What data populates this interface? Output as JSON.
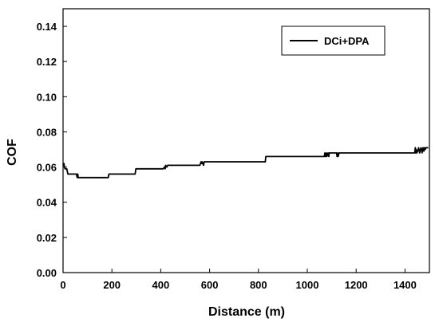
{
  "chart_data": {
    "type": "line",
    "xlabel": "Distance (m)",
    "ylabel": "COF",
    "xlim": [
      0,
      1500
    ],
    "ylim": [
      0,
      0.15
    ],
    "x_ticks": [
      0,
      200,
      400,
      600,
      800,
      1000,
      1200,
      1400
    ],
    "y_ticks": [
      0.0,
      0.02,
      0.04,
      0.06,
      0.08,
      0.1,
      0.12,
      0.14
    ],
    "grid": false,
    "legend_position": "top-right",
    "series": [
      {
        "name": "DCi+DPA",
        "color": "#000000",
        "x": [
          0,
          2,
          4,
          6,
          8,
          10,
          12,
          15,
          20,
          25,
          28,
          30,
          35,
          40,
          45,
          50,
          55,
          58,
          60,
          62,
          65,
          70,
          100,
          150,
          185,
          188,
          190,
          250,
          295,
          298,
          300,
          350,
          410,
          415,
          418,
          420,
          425,
          428,
          430,
          500,
          560,
          565,
          568,
          570,
          575,
          578,
          580,
          650,
          750,
          828,
          830,
          900,
          1000,
          1070,
          1072,
          1075,
          1078,
          1080,
          1085,
          1088,
          1090,
          1095,
          1100,
          1120,
          1122,
          1124,
          1126,
          1130,
          1200,
          1300,
          1400,
          1440,
          1442,
          1444,
          1446,
          1448,
          1452,
          1456,
          1460,
          1463,
          1466,
          1470,
          1474,
          1477,
          1480,
          1483,
          1486,
          1490,
          1495
        ],
        "y": [
          0.062,
          0.061,
          0.062,
          0.06,
          0.059,
          0.059,
          0.059,
          0.059,
          0.056,
          0.056,
          0.056,
          0.056,
          0.056,
          0.056,
          0.056,
          0.056,
          0.056,
          0.054,
          0.056,
          0.054,
          0.054,
          0.054,
          0.054,
          0.054,
          0.054,
          0.056,
          0.056,
          0.056,
          0.056,
          0.059,
          0.059,
          0.059,
          0.059,
          0.06,
          0.059,
          0.061,
          0.06,
          0.061,
          0.061,
          0.061,
          0.061,
          0.063,
          0.062,
          0.063,
          0.061,
          0.063,
          0.063,
          0.063,
          0.063,
          0.063,
          0.066,
          0.066,
          0.066,
          0.066,
          0.068,
          0.066,
          0.068,
          0.066,
          0.068,
          0.066,
          0.068,
          0.068,
          0.068,
          0.068,
          0.066,
          0.068,
          0.066,
          0.068,
          0.068,
          0.068,
          0.068,
          0.068,
          0.071,
          0.068,
          0.07,
          0.068,
          0.069,
          0.071,
          0.068,
          0.07,
          0.071,
          0.068,
          0.071,
          0.069,
          0.071,
          0.07,
          0.071,
          0.071,
          0.071
        ]
      }
    ]
  }
}
